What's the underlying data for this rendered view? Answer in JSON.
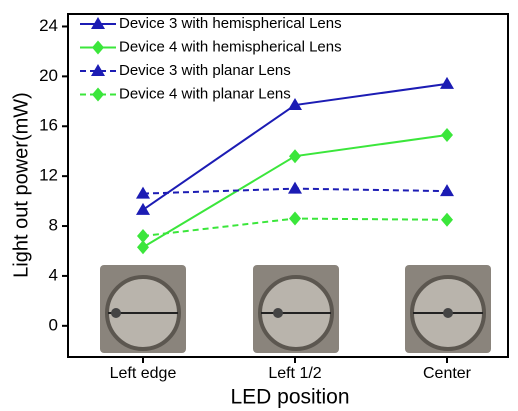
{
  "chart_data": {
    "type": "line",
    "categories": [
      "Left edge",
      "Left 1/2",
      "Center"
    ],
    "x_label": "LED position",
    "y_label": "Light out power(mW)",
    "ylim": [
      -2.5,
      25
    ],
    "yticks": [
      0,
      4,
      8,
      12,
      16,
      20,
      24
    ],
    "legend": "top-left",
    "series": [
      {
        "name": "Device 3 with hemispherical Lens",
        "color": "#1c1cb4",
        "marker": "triangle",
        "dashed": false,
        "values": [
          9.3,
          17.7,
          19.4
        ]
      },
      {
        "name": "Device 4 with hemispherical Lens",
        "color": "#3be63b",
        "marker": "diamond",
        "dashed": false,
        "values": [
          6.3,
          13.6,
          15.3
        ]
      },
      {
        "name": "Device 3 with planar Lens",
        "color": "#1c1cb4",
        "marker": "triangle",
        "dashed": true,
        "values": [
          10.6,
          11.0,
          10.8
        ]
      },
      {
        "name": "Device 4 with planar Lens",
        "color": "#3be63b",
        "marker": "diamond",
        "dashed": true,
        "values": [
          7.2,
          8.6,
          8.5
        ]
      }
    ]
  }
}
